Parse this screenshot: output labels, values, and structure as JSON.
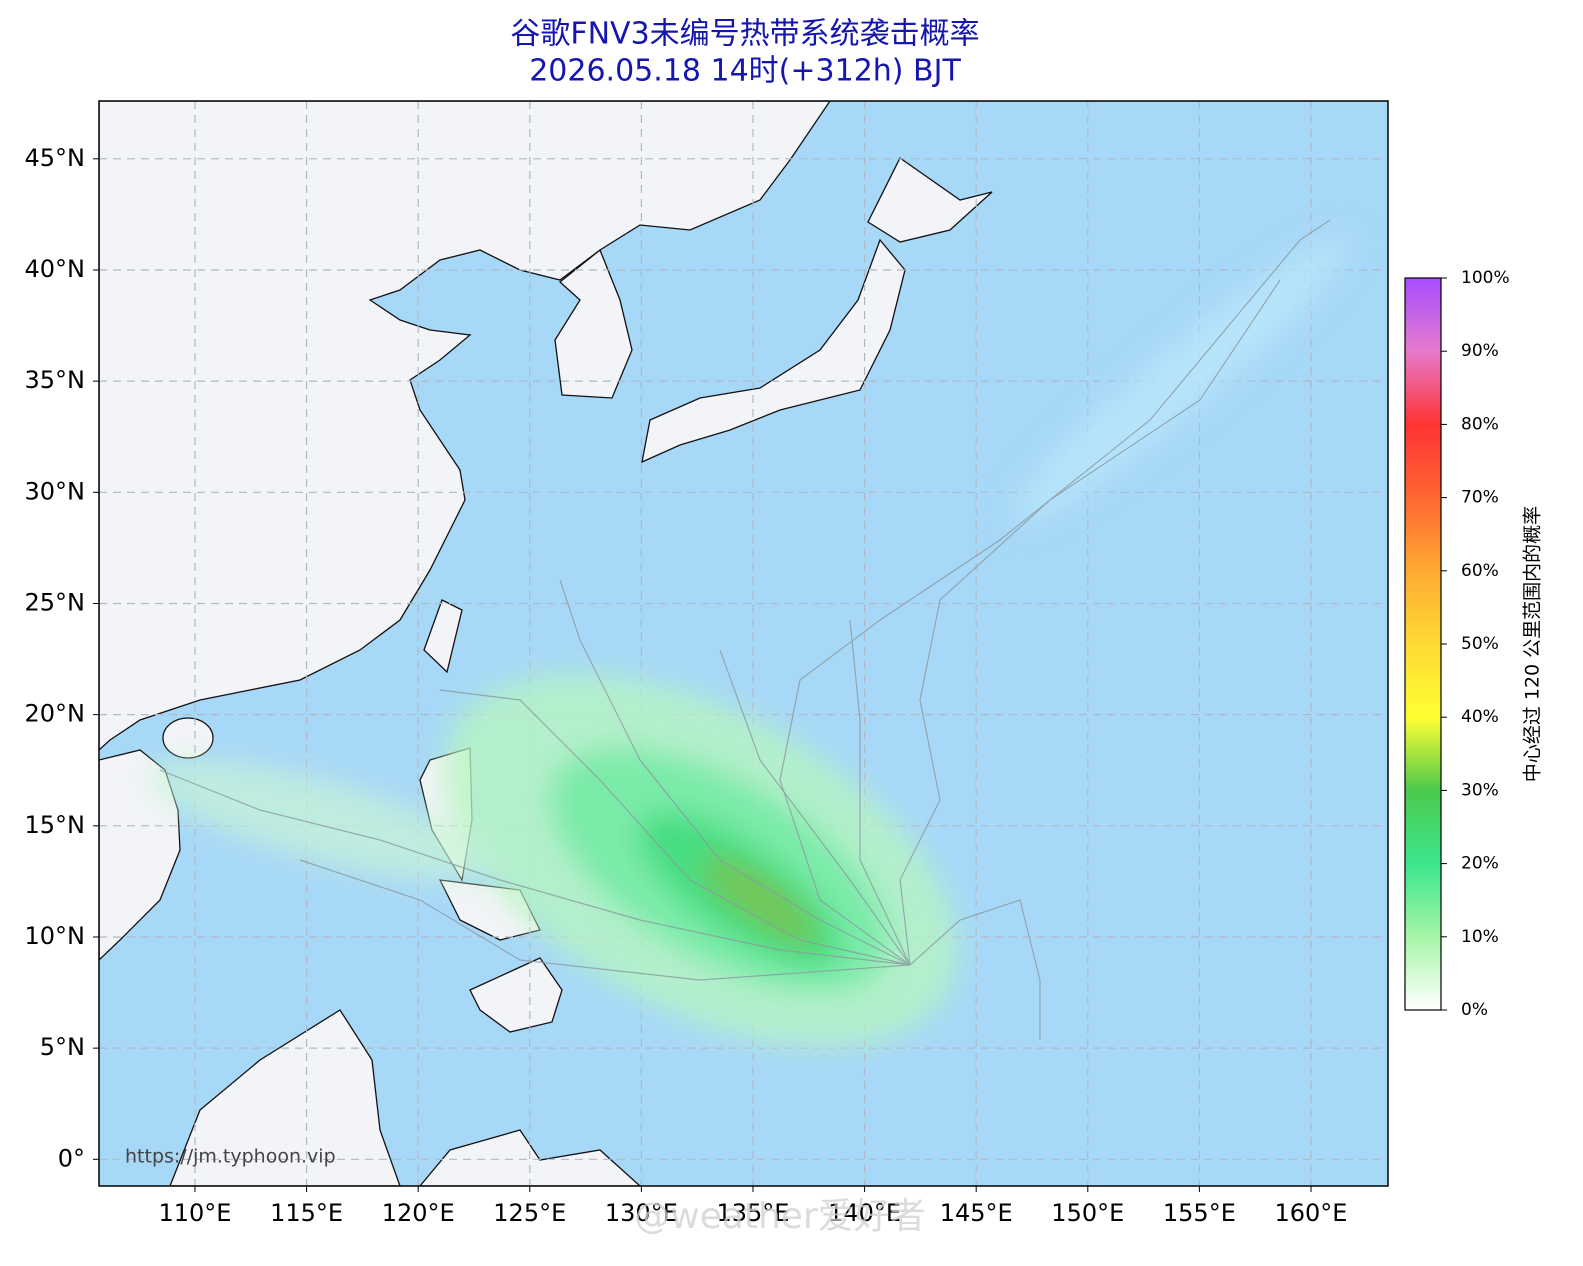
{
  "title": "谷歌FNV3未编号热带系统袭击概率",
  "subtitle": "2026.05.18 14时(+312h) BJT",
  "map": {
    "xlim": [
      105.7,
      163.45
    ],
    "ylim": [
      -1.2,
      47.6
    ],
    "xticks": [
      {
        "value": 110,
        "label": "110°E"
      },
      {
        "value": 115,
        "label": "115°E"
      },
      {
        "value": 120,
        "label": "120°E"
      },
      {
        "value": 125,
        "label": "125°E"
      },
      {
        "value": 130,
        "label": "130°E"
      },
      {
        "value": 135,
        "label": "135°E"
      },
      {
        "value": 140,
        "label": "140°E"
      },
      {
        "value": 145,
        "label": "145°E"
      },
      {
        "value": 150,
        "label": "150°E"
      },
      {
        "value": 155,
        "label": "155°E"
      },
      {
        "value": 160,
        "label": "160°E"
      }
    ],
    "yticks": [
      {
        "value": 0,
        "label": "0°"
      },
      {
        "value": 5,
        "label": "5°N"
      },
      {
        "value": 10,
        "label": "10°N"
      },
      {
        "value": 15,
        "label": "15°N"
      },
      {
        "value": 20,
        "label": "20°N"
      },
      {
        "value": 25,
        "label": "25°N"
      },
      {
        "value": 30,
        "label": "30°N"
      },
      {
        "value": 35,
        "label": "35°N"
      },
      {
        "value": 40,
        "label": "40°N"
      },
      {
        "value": 45,
        "label": "45°N"
      }
    ],
    "grid": true
  },
  "colorbar": {
    "label": "中心经过 120 公里范围内的概率",
    "lim": [
      0,
      100
    ],
    "ticks": [
      {
        "value": 0,
        "label": "0%"
      },
      {
        "value": 10,
        "label": "10%"
      },
      {
        "value": 20,
        "label": "20%"
      },
      {
        "value": 30,
        "label": "30%"
      },
      {
        "value": 40,
        "label": "40%"
      },
      {
        "value": 50,
        "label": "50%"
      },
      {
        "value": 60,
        "label": "60%"
      },
      {
        "value": 70,
        "label": "70%"
      },
      {
        "value": 80,
        "label": "80%"
      },
      {
        "value": 90,
        "label": "90%"
      },
      {
        "value": 100,
        "label": "100%"
      }
    ],
    "colors": [
      "#ffffff",
      "#a6f5a6",
      "#3ce68c",
      "#4cc94c",
      "#ffff33",
      "#ffd933",
      "#ffaa33",
      "#ff6633",
      "#ff3333",
      "#e67acc",
      "#a64dff"
    ]
  },
  "source": "https://jm.typhoon.vip",
  "watermark": "@weather爱好者"
}
